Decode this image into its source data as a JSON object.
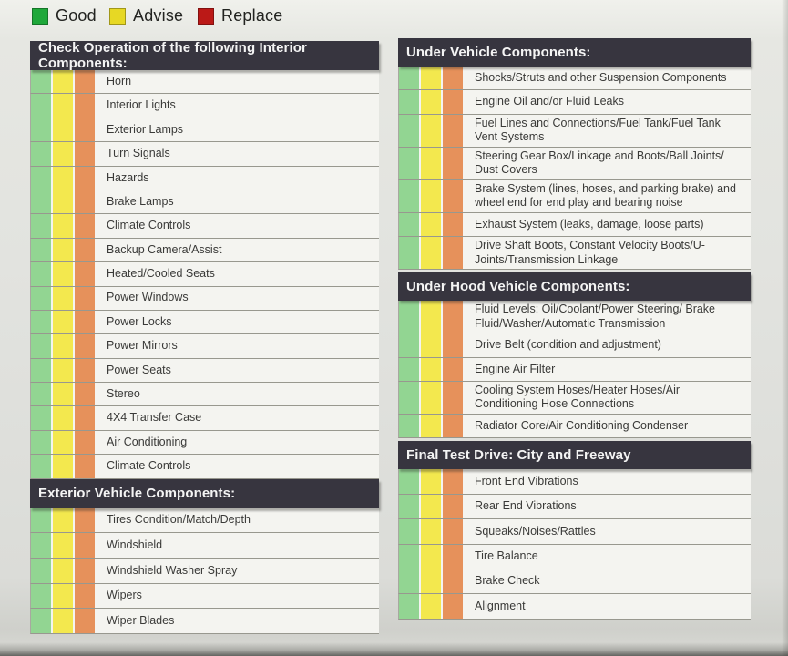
{
  "legend": {
    "items": [
      {
        "label": "Good",
        "color": "#1fa83a"
      },
      {
        "label": "Advise",
        "color": "#e7d824"
      },
      {
        "label": "Replace",
        "color": "#bb1917"
      }
    ]
  },
  "colors": {
    "stripe_good": "#92d592",
    "stripe_advise": "#f3e84e",
    "stripe_replace": "#e6915b",
    "header_bg": "#37353f",
    "header_text": "#f4f4f4",
    "row_bg": "#f4f4f0",
    "page_bg": "#e2e3df",
    "divider": "#98988f"
  },
  "checkbox_options": [
    "good",
    "advise",
    "replace"
  ],
  "columns": {
    "left": [
      {
        "title": "Check Operation of the following Interior Components:",
        "items": [
          "Horn",
          "Interior Lights",
          "Exterior Lamps",
          "Turn Signals",
          "Hazards",
          "Brake Lamps",
          "Climate Controls",
          "Backup Camera/Assist",
          "Heated/Cooled Seats",
          "Power Windows",
          "Power Locks",
          "Power Mirrors",
          "Power Seats",
          "Stereo",
          "4X4 Transfer Case",
          "Air Conditioning",
          "Climate Controls"
        ]
      },
      {
        "title": "Exterior Vehicle Components:",
        "items": [
          "Tires Condition/Match/Depth",
          "Windshield",
          "Windshield Washer Spray",
          "Wipers",
          "Wiper Blades"
        ]
      }
    ],
    "right": [
      {
        "title": "Under Vehicle Components:",
        "items": [
          "Shocks/Struts and other Suspension Components",
          "Engine Oil and/or Fluid Leaks",
          "Fuel Lines and Connections/Fuel Tank/Fuel Tank Vent Systems",
          "Steering Gear Box/Linkage and Boots/Ball Joints/ Dust Covers",
          "Brake System (lines, hoses, and parking brake) and wheel end for end play and bearing noise",
          "Exhaust System (leaks, damage, loose parts)",
          "Drive Shaft Boots, Constant Velocity Boots/U-Joints/Transmission Linkage"
        ]
      },
      {
        "title": "Under Hood Vehicle Components:",
        "items": [
          "Fluid Levels: Oil/Coolant/Power Steering/ Brake Fluid/Washer/Automatic Transmission",
          "Drive Belt (condition and adjustment)",
          "Engine Air Filter",
          "Cooling System Hoses/Heater Hoses/Air Conditioning Hose Connections",
          "Radiator Core/Air Conditioning Condenser"
        ]
      },
      {
        "title": "Final Test Drive: City and Freeway",
        "items": [
          "Front End Vibrations",
          "Rear End Vibrations",
          "Squeaks/Noises/Rattles",
          "Tire Balance",
          "Brake Check",
          "Alignment"
        ]
      }
    ]
  }
}
